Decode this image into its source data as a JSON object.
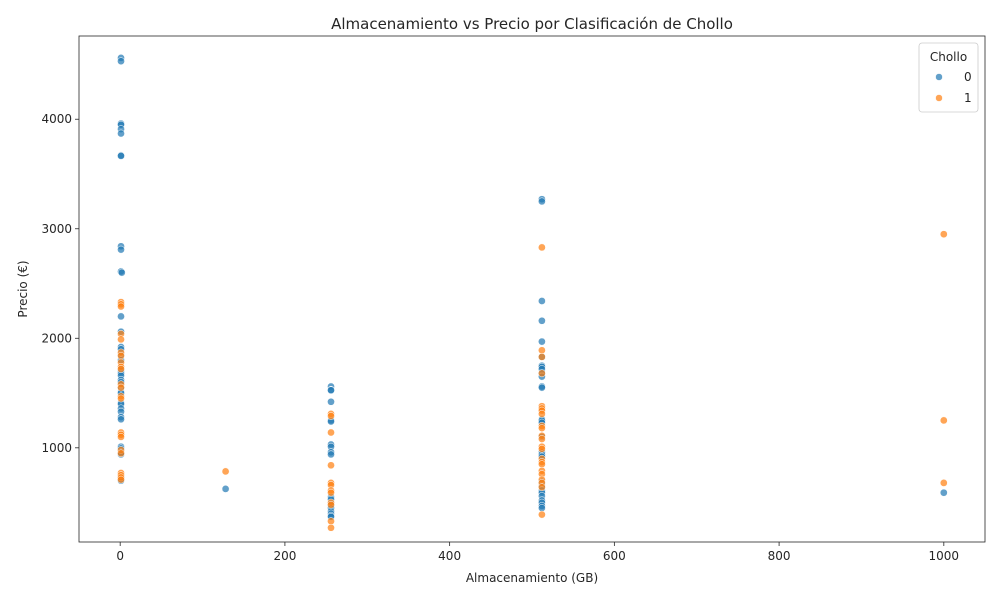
{
  "chart_data": {
    "type": "scatter",
    "title": "Almacenamiento vs Precio por Clasificación de Chollo",
    "xlabel": "Almacenamiento (GB)",
    "ylabel": "Precio (€)",
    "xlim": [
      -50,
      1050
    ],
    "ylim": [
      140,
      4760
    ],
    "xticks": [
      0,
      200,
      400,
      600,
      800,
      1000
    ],
    "yticks": [
      1000,
      2000,
      3000,
      4000
    ],
    "grid": false,
    "legend": {
      "title": "Chollo",
      "placement": "top-right"
    },
    "series": [
      {
        "name": "0",
        "color": "#1f77b4",
        "points": [
          [
            1,
            4560
          ],
          [
            1,
            4530
          ],
          [
            1,
            3960
          ],
          [
            1,
            3950
          ],
          [
            1,
            3910
          ],
          [
            1,
            3870
          ],
          [
            1,
            3670
          ],
          [
            1,
            3665
          ],
          [
            1,
            2840
          ],
          [
            1,
            2810
          ],
          [
            1,
            2610
          ],
          [
            2,
            2600
          ],
          [
            1,
            2200
          ],
          [
            1,
            2060
          ],
          [
            1,
            1920
          ],
          [
            1,
            1900
          ],
          [
            1,
            1850
          ],
          [
            1,
            1800
          ],
          [
            1,
            1720
          ],
          [
            1,
            1700
          ],
          [
            1,
            1680
          ],
          [
            1,
            1660
          ],
          [
            1,
            1620
          ],
          [
            1,
            1600
          ],
          [
            1,
            1550
          ],
          [
            1,
            1510
          ],
          [
            1,
            1500
          ],
          [
            1,
            1410
          ],
          [
            1,
            1400
          ],
          [
            1,
            1360
          ],
          [
            1,
            1330
          ],
          [
            1,
            1280
          ],
          [
            1,
            1260
          ],
          [
            1,
            1010
          ],
          [
            1,
            995
          ],
          [
            1,
            960
          ],
          [
            1,
            940
          ],
          [
            1,
            720
          ],
          [
            1,
            700
          ],
          [
            128,
            625
          ],
          [
            256,
            1560
          ],
          [
            256,
            1530
          ],
          [
            256,
            1525
          ],
          [
            256,
            1420
          ],
          [
            256,
            1250
          ],
          [
            256,
            1240
          ],
          [
            256,
            1030
          ],
          [
            256,
            1010
          ],
          [
            256,
            960
          ],
          [
            256,
            940
          ],
          [
            256,
            550
          ],
          [
            256,
            530
          ],
          [
            256,
            490
          ],
          [
            256,
            470
          ],
          [
            256,
            450
          ],
          [
            256,
            420
          ],
          [
            256,
            400
          ],
          [
            256,
            380
          ],
          [
            256,
            370
          ],
          [
            512,
            3270
          ],
          [
            512,
            3250
          ],
          [
            512,
            2340
          ],
          [
            512,
            2160
          ],
          [
            512,
            1970
          ],
          [
            512,
            1830
          ],
          [
            512,
            1750
          ],
          [
            512,
            1740
          ],
          [
            512,
            1720
          ],
          [
            512,
            1680
          ],
          [
            512,
            1650
          ],
          [
            512,
            1560
          ],
          [
            512,
            1550
          ],
          [
            512,
            1260
          ],
          [
            512,
            1250
          ],
          [
            512,
            1230
          ],
          [
            512,
            1100
          ],
          [
            512,
            960
          ],
          [
            512,
            940
          ],
          [
            512,
            920
          ],
          [
            512,
            690
          ],
          [
            512,
            650
          ],
          [
            512,
            610
          ],
          [
            512,
            590
          ],
          [
            512,
            560
          ],
          [
            512,
            520
          ],
          [
            512,
            500
          ],
          [
            512,
            470
          ],
          [
            512,
            450
          ],
          [
            1000,
            590
          ]
        ]
      },
      {
        "name": "1",
        "color": "#ff7f0e",
        "points": [
          [
            1,
            2330
          ],
          [
            1,
            2310
          ],
          [
            1,
            2290
          ],
          [
            1,
            2040
          ],
          [
            1,
            1990
          ],
          [
            1,
            1870
          ],
          [
            1,
            1840
          ],
          [
            1,
            1780
          ],
          [
            1,
            1740
          ],
          [
            1,
            1720
          ],
          [
            1,
            1580
          ],
          [
            1,
            1550
          ],
          [
            1,
            1470
          ],
          [
            1,
            1450
          ],
          [
            1,
            1140
          ],
          [
            1,
            1120
          ],
          [
            1,
            1100
          ],
          [
            1,
            980
          ],
          [
            1,
            950
          ],
          [
            1,
            770
          ],
          [
            1,
            750
          ],
          [
            1,
            730
          ],
          [
            1,
            710
          ],
          [
            128,
            785
          ],
          [
            256,
            1310
          ],
          [
            256,
            1290
          ],
          [
            256,
            1140
          ],
          [
            256,
            840
          ],
          [
            256,
            680
          ],
          [
            256,
            660
          ],
          [
            256,
            610
          ],
          [
            256,
            590
          ],
          [
            256,
            500
          ],
          [
            256,
            480
          ],
          [
            256,
            330
          ],
          [
            256,
            270
          ],
          [
            512,
            2830
          ],
          [
            512,
            1890
          ],
          [
            512,
            1830
          ],
          [
            512,
            1680
          ],
          [
            512,
            1380
          ],
          [
            512,
            1360
          ],
          [
            512,
            1340
          ],
          [
            512,
            1310
          ],
          [
            512,
            1200
          ],
          [
            512,
            1180
          ],
          [
            512,
            1110
          ],
          [
            512,
            1080
          ],
          [
            512,
            1010
          ],
          [
            512,
            990
          ],
          [
            512,
            900
          ],
          [
            512,
            870
          ],
          [
            512,
            850
          ],
          [
            512,
            790
          ],
          [
            512,
            760
          ],
          [
            512,
            710
          ],
          [
            512,
            680
          ],
          [
            512,
            640
          ],
          [
            512,
            390
          ],
          [
            1000,
            2950
          ],
          [
            1000,
            1250
          ],
          [
            1000,
            680
          ]
        ]
      }
    ]
  }
}
